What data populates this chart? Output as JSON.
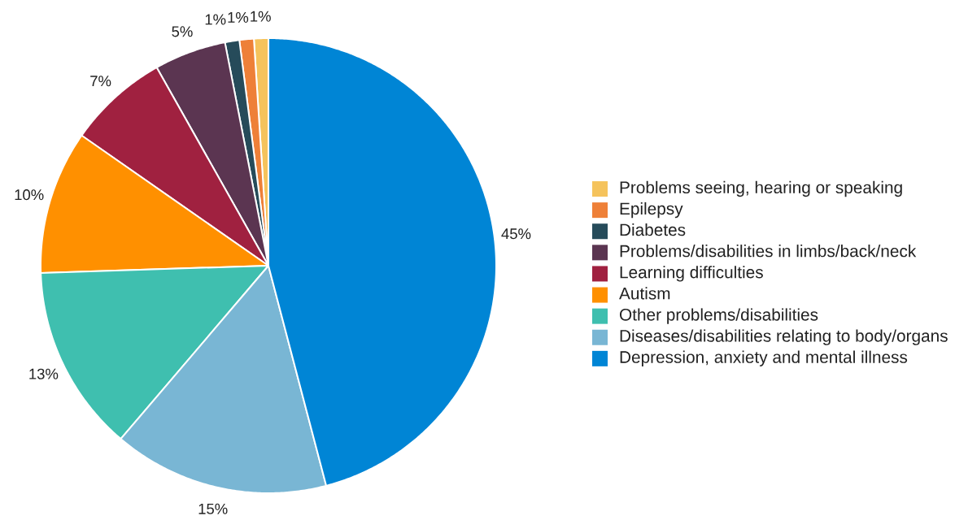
{
  "chart_data": {
    "type": "pie",
    "categories": [
      "Problems seeing, hearing or speaking",
      "Epilepsy",
      "Diabetes",
      "Problems/disabilities in limbs/back/neck",
      "Learning difficulties",
      "Autism",
      "Other problems/disabilities",
      "Diseases/disabilities relating to body/organs",
      "Depression, anxiety and mental illness"
    ],
    "values": [
      1,
      1,
      1,
      5,
      7,
      10,
      13,
      15,
      45
    ],
    "colors": [
      "#f5c35c",
      "#ee8038",
      "#264b5a",
      "#5b3551",
      "#a02140",
      "#ff9000",
      "#3fbfaf",
      "#79b6d4",
      "#0085d5"
    ],
    "value_labels": [
      "1%",
      "1%",
      "1%",
      "5%",
      "7%",
      "10%",
      "13%",
      "15%",
      "45%"
    ],
    "legend": "right"
  }
}
